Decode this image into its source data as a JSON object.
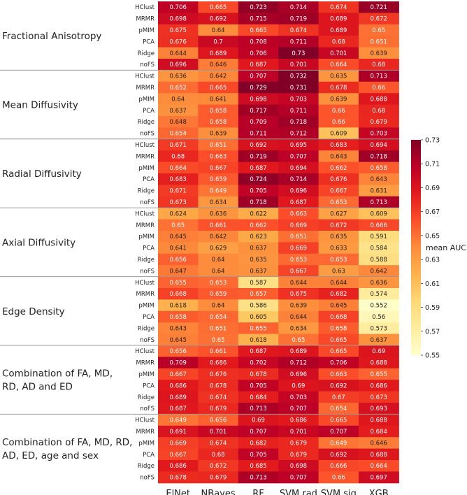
{
  "chart_data": {
    "type": "heatmap",
    "columns": [
      "ElNet",
      "NBayes",
      "RF",
      "SVM rad",
      "SVM sig",
      "XGB"
    ],
    "colorbar": {
      "label": "mean AUC",
      "min": 0.55,
      "max": 0.73,
      "ticks": [
        "0.73",
        "0.71",
        "0.69",
        "0.67",
        "0.65",
        "0.63",
        "0.61",
        "0.59",
        "0.57",
        "0.55"
      ],
      "colormap": "YlOrRd"
    },
    "groups": [
      {
        "label_lines": [
          "Fractional Anisotropy"
        ],
        "rows": [
          {
            "name": "HClust",
            "values": [
              "0.706",
              "0.665",
              "0.723",
              "0.714",
              "0.674",
              "0.721"
            ]
          },
          {
            "name": "MRMR",
            "values": [
              "0.698",
              "0.692",
              "0.715",
              "0.719",
              "0.689",
              "0.672"
            ]
          },
          {
            "name": "pMIM",
            "values": [
              "0.675",
              "0.64",
              "0.665",
              "0.674",
              "0.689",
              "0.65"
            ]
          },
          {
            "name": "PCA",
            "values": [
              "0.676",
              "0.7",
              "0.708",
              "0.711",
              "0.68",
              "0.651"
            ]
          },
          {
            "name": "Ridge",
            "values": [
              "0.644",
              "0.689",
              "0.706",
              "0.73",
              "0.701",
              "0.639"
            ]
          },
          {
            "name": "noFS",
            "values": [
              "0.696",
              "0.646",
              "0.687",
              "0.701",
              "0.664",
              "0.68"
            ]
          }
        ]
      },
      {
        "label_lines": [
          "Mean Diffusivity"
        ],
        "rows": [
          {
            "name": "HClust",
            "values": [
              "0.636",
              "0.642",
              "0.707",
              "0.732",
              "0.635",
              "0.713"
            ]
          },
          {
            "name": "MRMR",
            "values": [
              "0.652",
              "0.665",
              "0.729",
              "0.731",
              "0.678",
              "0.66"
            ]
          },
          {
            "name": "pMIM",
            "values": [
              "0.64",
              "0.641",
              "0.698",
              "0.703",
              "0.639",
              "0.688"
            ]
          },
          {
            "name": "PCA",
            "values": [
              "0.637",
              "0.658",
              "0.717",
              "0.711",
              "0.66",
              "0.68"
            ]
          },
          {
            "name": "Ridge",
            "values": [
              "0.648",
              "0.658",
              "0.709",
              "0.718",
              "0.66",
              "0.679"
            ]
          },
          {
            "name": "noFS",
            "values": [
              "0.654",
              "0.639",
              "0.711",
              "0.712",
              "0.609",
              "0.703"
            ]
          }
        ]
      },
      {
        "label_lines": [
          "Radial Diffusivity"
        ],
        "rows": [
          {
            "name": "HClust",
            "values": [
              "0.671",
              "0.651",
              "0.692",
              "0.695",
              "0.683",
              "0.694"
            ]
          },
          {
            "name": "MRMR",
            "values": [
              "0.68",
              "0.663",
              "0.719",
              "0.707",
              "0.643",
              "0.718"
            ]
          },
          {
            "name": "pMIM",
            "values": [
              "0.664",
              "0.667",
              "0.687",
              "0.694",
              "0.662",
              "0.658"
            ]
          },
          {
            "name": "PCA",
            "values": [
              "0.683",
              "0.659",
              "0.724",
              "0.714",
              "0.676",
              "0.643"
            ]
          },
          {
            "name": "Ridge",
            "values": [
              "0.671",
              "0.649",
              "0.705",
              "0.696",
              "0.667",
              "0.631"
            ]
          },
          {
            "name": "noFS",
            "values": [
              "0.673",
              "0.634",
              "0.718",
              "0.687",
              "0.653",
              "0.713"
            ]
          }
        ]
      },
      {
        "label_lines": [
          "Axial Diffusivity"
        ],
        "rows": [
          {
            "name": "HClust",
            "values": [
              "0.624",
              "0.636",
              "0.622",
              "0.663",
              "0.627",
              "0.609"
            ]
          },
          {
            "name": "MRMR",
            "values": [
              "0.65",
              "0.661",
              "0.662",
              "0.669",
              "0.672",
              "0.666"
            ]
          },
          {
            "name": "pMIM",
            "values": [
              "0.645",
              "0.642",
              "0.623",
              "0.651",
              "0.635",
              "0.591"
            ]
          },
          {
            "name": "PCA",
            "values": [
              "0.641",
              "0.629",
              "0.637",
              "0.669",
              "0.633",
              "0.584"
            ]
          },
          {
            "name": "Ridge",
            "values": [
              "0.656",
              "0.64",
              "0.635",
              "0.653",
              "0.653",
              "0.588"
            ]
          },
          {
            "name": "noFS",
            "values": [
              "0.647",
              "0.64",
              "0.637",
              "0.667",
              "0.63",
              "0.642"
            ]
          }
        ]
      },
      {
        "label_lines": [
          "Edge Density"
        ],
        "rows": [
          {
            "name": "HClust",
            "values": [
              "0.655",
              "0.653",
              "0.587",
              "0.644",
              "0.644",
              "0.636"
            ]
          },
          {
            "name": "MRMR",
            "values": [
              "0.668",
              "0.659",
              "0.657",
              "0.675",
              "0.682",
              "0.574"
            ]
          },
          {
            "name": "pMIM",
            "values": [
              "0.618",
              "0.64",
              "0.586",
              "0.639",
              "0.645",
              "0.552"
            ]
          },
          {
            "name": "PCA",
            "values": [
              "0.658",
              "0.654",
              "0.605",
              "0.644",
              "0.668",
              "0.56"
            ]
          },
          {
            "name": "Ridge",
            "values": [
              "0.643",
              "0.651",
              "0.655",
              "0.634",
              "0.658",
              "0.573"
            ]
          },
          {
            "name": "noFS",
            "values": [
              "0.645",
              "0.65",
              "0.618",
              "0.65",
              "0.665",
              "0.637"
            ]
          }
        ]
      },
      {
        "label_lines": [
          "Combination of FA, MD,",
          "RD, AD and ED"
        ],
        "rows": [
          {
            "name": "HClust",
            "values": [
              "0.656",
              "0.661",
              "0.687",
              "0.689",
              "0.665",
              "0.69"
            ]
          },
          {
            "name": "MRMR",
            "values": [
              "0.709",
              "0.686",
              "0.702",
              "0.712",
              "0.706",
              "0.688"
            ]
          },
          {
            "name": "pMIM",
            "values": [
              "0.667",
              "0.676",
              "0.678",
              "0.696",
              "0.663",
              "0.655"
            ]
          },
          {
            "name": "PCA",
            "values": [
              "0.686",
              "0.678",
              "0.705",
              "0.69",
              "0.692",
              "0.686"
            ]
          },
          {
            "name": "Ridge",
            "values": [
              "0.689",
              "0.674",
              "0.684",
              "0.703",
              "0.67",
              "0.673"
            ]
          },
          {
            "name": "noFS",
            "values": [
              "0.687",
              "0.679",
              "0.713",
              "0.707",
              "0.654",
              "0.693"
            ]
          }
        ]
      },
      {
        "label_lines": [
          "Combination of FA, MD, RD,",
          "AD, ED, age and sex"
        ],
        "rows": [
          {
            "name": "HClust",
            "values": [
              "0.649",
              "0.656",
              "0.69",
              "0.686",
              "0.665",
              "0.688"
            ]
          },
          {
            "name": "MRMR",
            "values": [
              "0.691",
              "0.701",
              "0.707",
              "0.701",
              "0.707",
              "0.684"
            ]
          },
          {
            "name": "pMIM",
            "values": [
              "0.669",
              "0.674",
              "0.682",
              "0.679",
              "0.649",
              "0.646"
            ]
          },
          {
            "name": "PCA",
            "values": [
              "0.667",
              "0.68",
              "0.705",
              "0.679",
              "0.692",
              "0.688"
            ]
          },
          {
            "name": "Ridge",
            "values": [
              "0.686",
              "0.672",
              "0.685",
              "0.698",
              "0.666",
              "0.664"
            ]
          },
          {
            "name": "noFS",
            "values": [
              "0.678",
              "0.679",
              "0.713",
              "0.707",
              "0.66",
              "0.697"
            ]
          }
        ]
      }
    ]
  }
}
